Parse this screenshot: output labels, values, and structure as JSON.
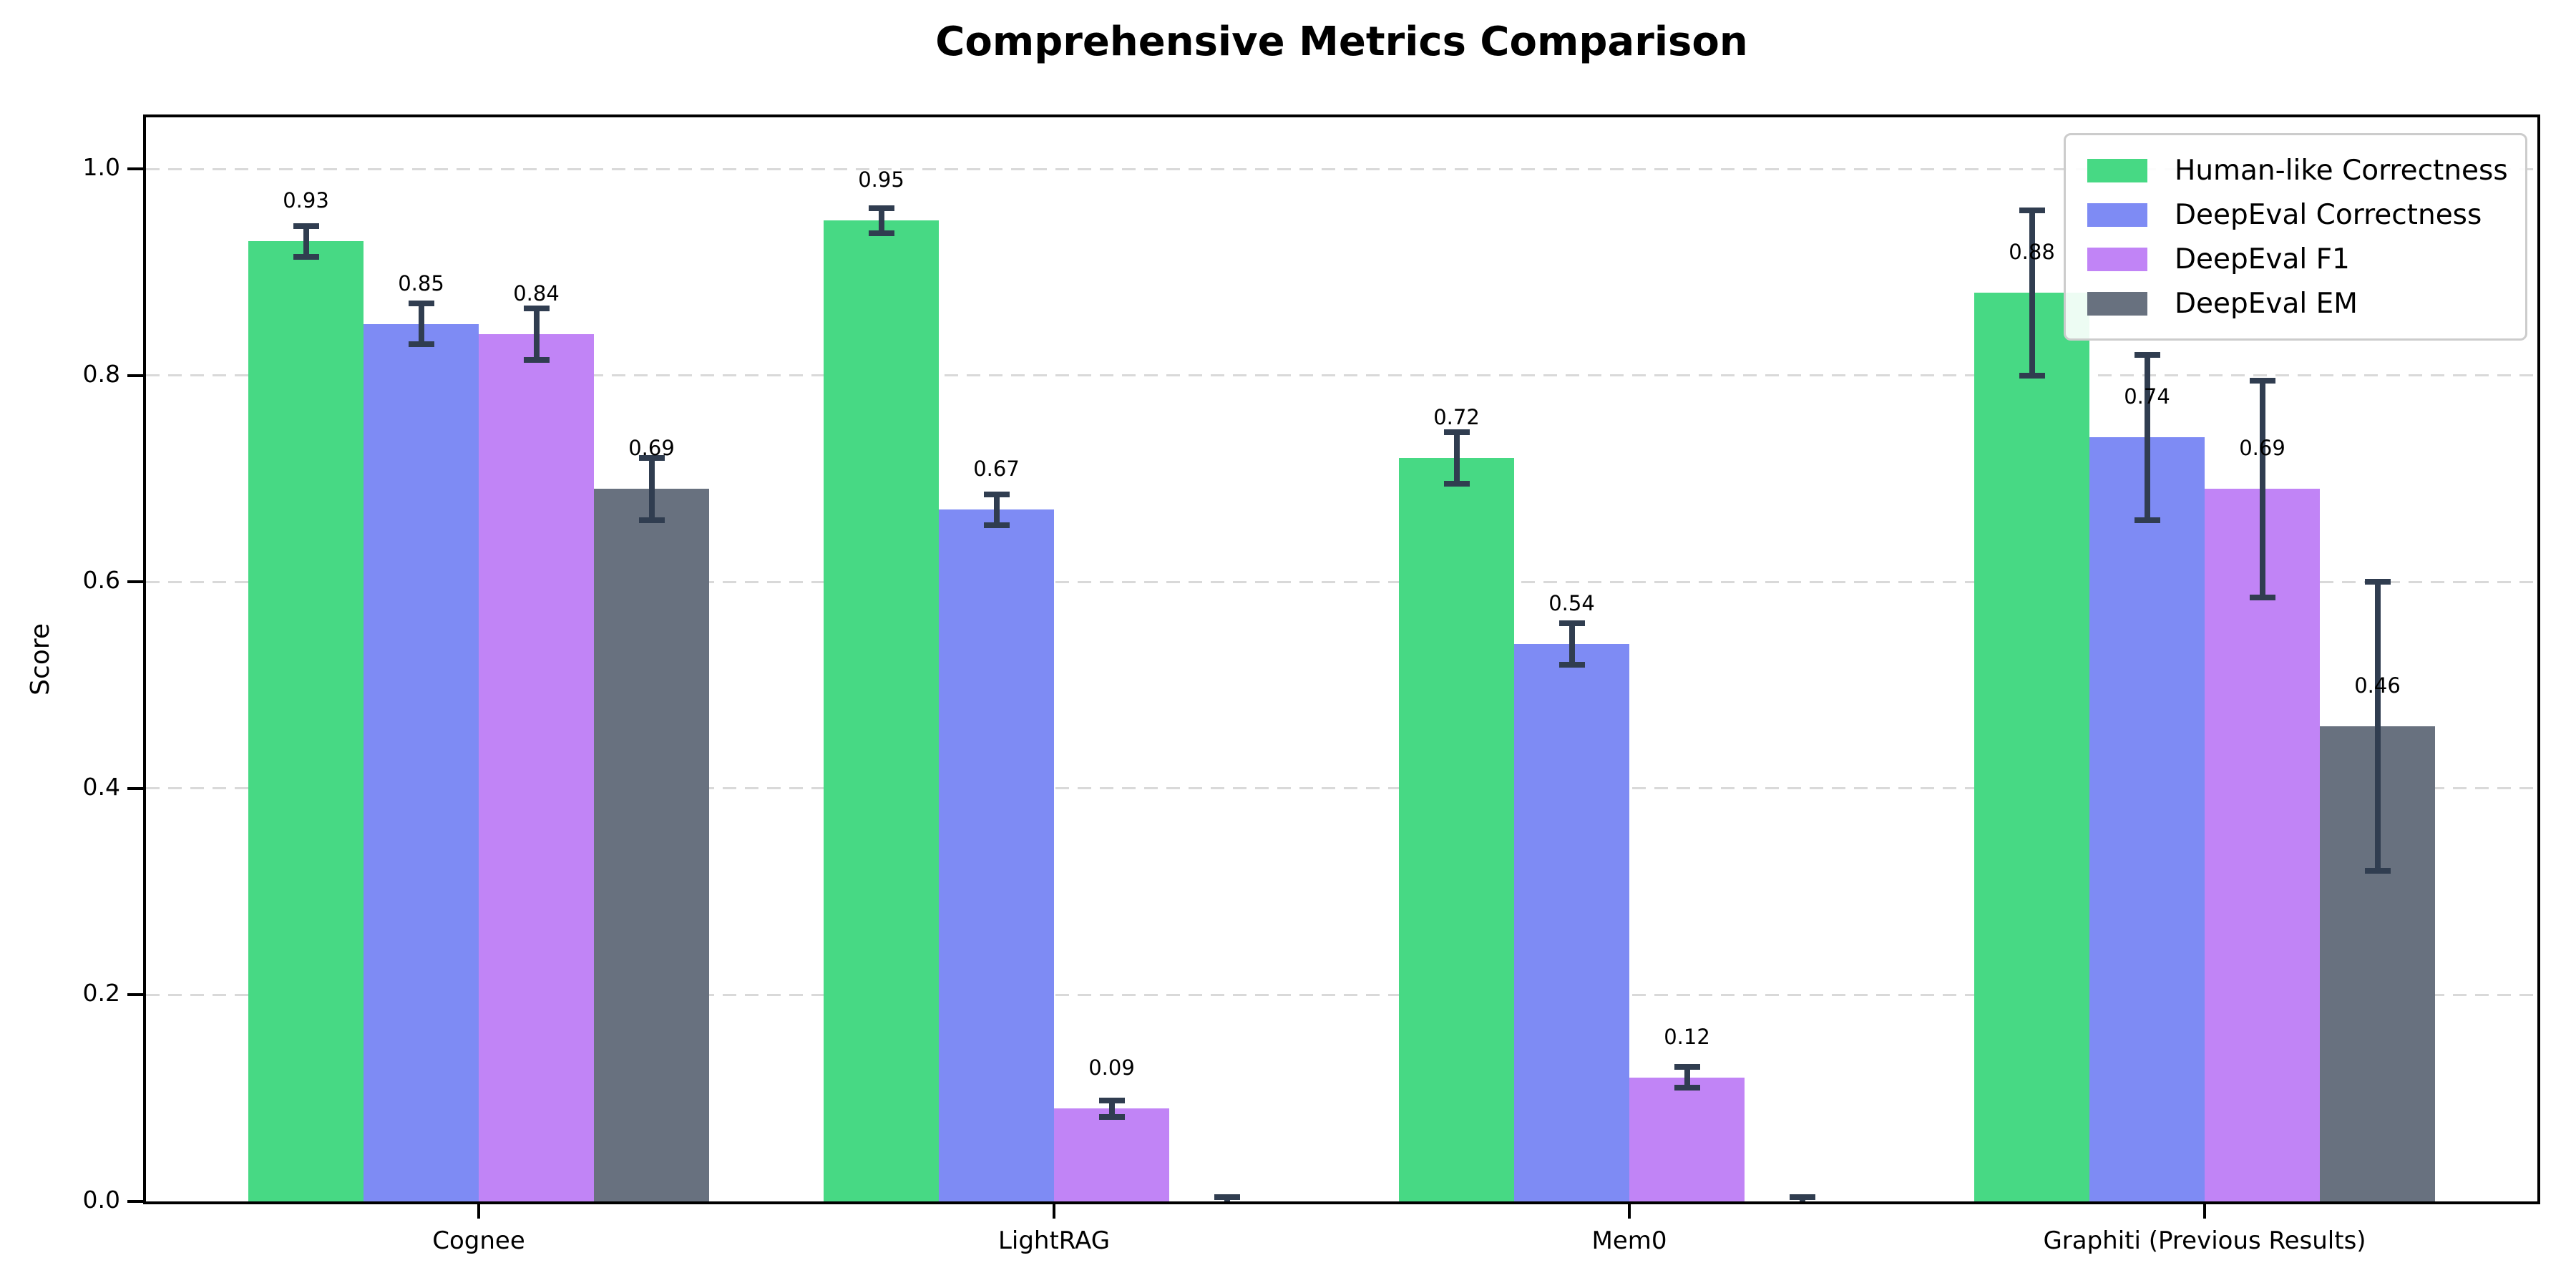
{
  "chart_data": {
    "type": "bar",
    "title": "Comprehensive Metrics Comparison",
    "ylabel": "Score",
    "xlabel": "",
    "categories": [
      "Cognee",
      "LightRAG",
      "Mem0",
      "Graphiti (Previous Results)"
    ],
    "series": [
      {
        "name": "Human-like Correctness",
        "color": "#47d984",
        "values": [
          0.93,
          0.95,
          0.72,
          0.88
        ],
        "errors": [
          0.015,
          0.012,
          0.025,
          0.08
        ]
      },
      {
        "name": "DeepEval Correctness",
        "color": "#7e8bf4",
        "values": [
          0.85,
          0.67,
          0.54,
          0.74
        ],
        "errors": [
          0.02,
          0.015,
          0.02,
          0.08
        ]
      },
      {
        "name": "DeepEval F1",
        "color": "#c184f6",
        "values": [
          0.84,
          0.09,
          0.12,
          0.69
        ],
        "errors": [
          0.025,
          0.008,
          0.01,
          0.105
        ]
      },
      {
        "name": "DeepEval EM",
        "color": "#68717f",
        "values": [
          0.69,
          0.0,
          0.0,
          0.46
        ],
        "errors": [
          0.03,
          0.004,
          0.004,
          0.14
        ]
      }
    ],
    "value_labels_shown": [
      "0.93",
      "0.85",
      "0.84",
      "0.69",
      "0.95",
      "0.67",
      "0.09",
      "0.72",
      "0.54",
      "0.12",
      "0.88",
      "0.74",
      "0.69",
      "0.46"
    ],
    "yticks": [
      "0.0",
      "0.2",
      "0.4",
      "0.6",
      "0.8",
      "1.0"
    ],
    "ylim": [
      0,
      1.05
    ],
    "grid": "horizontal-dashed",
    "grid_color": "#d9d9d9",
    "error_bar_color": "#303d50",
    "legend_position": "upper-right",
    "legend_entries": [
      "Human-like Correctness",
      "DeepEval Correctness",
      "DeepEval F1",
      "DeepEval EM"
    ]
  }
}
